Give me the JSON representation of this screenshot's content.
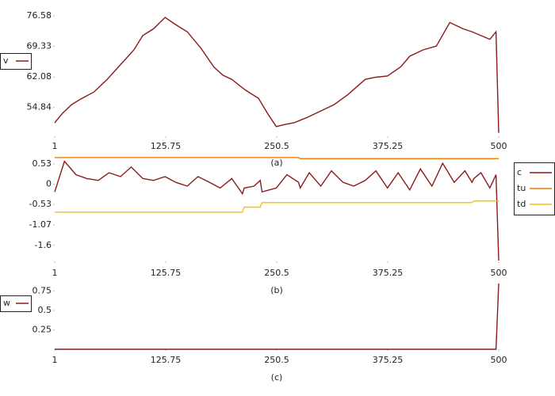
{
  "chart_data": [
    {
      "type": "line",
      "caption": "(a)",
      "x": [
        1,
        10,
        20,
        30,
        45,
        60,
        75,
        90,
        100,
        112,
        125,
        137,
        150,
        165,
        180,
        190,
        200,
        215,
        230,
        240,
        250,
        260,
        270,
        285,
        300,
        315,
        330,
        350,
        362,
        375,
        390,
        400,
        415,
        430,
        445,
        460,
        470,
        480,
        490,
        497,
        500
      ],
      "series": [
        {
          "name": "v",
          "color": "#8b1a1a",
          "values": [
            51.2,
            53.5,
            55.5,
            56.8,
            58.5,
            61.5,
            65,
            68.5,
            71.9,
            73.5,
            76.2,
            74.5,
            72.8,
            69,
            64.4,
            62.5,
            61.5,
            59,
            57,
            53.5,
            50.3,
            50.8,
            51.2,
            52.5,
            54,
            55.5,
            57.8,
            61.5,
            62,
            62.3,
            64.5,
            67,
            68.5,
            69.4,
            75,
            73.5,
            72.8,
            71.9,
            71,
            72.8,
            48.8
          ]
        }
      ],
      "xlim": [
        1,
        500
      ],
      "ylim": [
        48,
        76.58
      ],
      "xticks": [
        1,
        125.75,
        250.5,
        375.25,
        500
      ],
      "yticks": [
        54.84,
        62.08,
        69.33,
        76.58
      ],
      "legend": "left"
    },
    {
      "type": "line",
      "caption": "(b)",
      "x": [
        1,
        12,
        25,
        37,
        50,
        62,
        75,
        87,
        100,
        112,
        125,
        137,
        150,
        162,
        175,
        187,
        200,
        212,
        214,
        225,
        232,
        234,
        250,
        262,
        275,
        277,
        287,
        300,
        312,
        325,
        337,
        350,
        362,
        375,
        387,
        400,
        412,
        425,
        437,
        450,
        462,
        470,
        472,
        480,
        490,
        497,
        500
      ],
      "series": [
        {
          "name": "c",
          "color": "#8b1a1a",
          "values": [
            -0.2,
            0.6,
            0.25,
            0.15,
            0.1,
            0.3,
            0.2,
            0.45,
            0.15,
            0.1,
            0.2,
            0.05,
            -0.05,
            0.2,
            0.05,
            -0.1,
            0.15,
            -0.25,
            -0.1,
            -0.05,
            0.1,
            -0.2,
            -0.1,
            0.25,
            0.05,
            -0.1,
            0.3,
            -0.05,
            0.35,
            0.05,
            -0.05,
            0.1,
            0.35,
            -0.1,
            0.3,
            -0.15,
            0.4,
            -0.05,
            0.55,
            0.05,
            0.35,
            0.05,
            0.15,
            0.3,
            -0.1,
            0.25,
            -2.0
          ]
        },
        {
          "name": "tu",
          "color": "#f07800",
          "values": [
            0.7,
            0.7,
            0.7,
            0.7,
            0.7,
            0.7,
            0.7,
            0.7,
            0.7,
            0.7,
            0.7,
            0.7,
            0.7,
            0.7,
            0.7,
            0.7,
            0.7,
            0.7,
            0.7,
            0.7,
            0.7,
            0.7,
            0.7,
            0.7,
            0.7,
            0.67,
            0.67,
            0.67,
            0.67,
            0.67,
            0.67,
            0.67,
            0.67,
            0.67,
            0.67,
            0.67,
            0.67,
            0.67,
            0.67,
            0.67,
            0.67,
            0.67,
            0.67,
            0.67,
            0.67,
            0.67,
            0.67
          ]
        },
        {
          "name": "td",
          "color": "#f5c400",
          "values": [
            -0.73,
            -0.73,
            -0.73,
            -0.73,
            -0.73,
            -0.73,
            -0.73,
            -0.73,
            -0.73,
            -0.73,
            -0.73,
            -0.73,
            -0.73,
            -0.73,
            -0.73,
            -0.73,
            -0.73,
            -0.73,
            -0.6,
            -0.6,
            -0.6,
            -0.48,
            -0.48,
            -0.48,
            -0.48,
            -0.48,
            -0.48,
            -0.48,
            -0.48,
            -0.48,
            -0.48,
            -0.48,
            -0.48,
            -0.48,
            -0.48,
            -0.48,
            -0.48,
            -0.48,
            -0.48,
            -0.48,
            -0.48,
            -0.48,
            -0.44,
            -0.44,
            -0.44,
            -0.44,
            -0.44
          ]
        }
      ],
      "xlim": [
        1,
        500
      ],
      "ylim": [
        -2.02,
        0.78
      ],
      "xticks": [
        1,
        125.75,
        250.5,
        375.25,
        500
      ],
      "yticks": [
        0.53,
        0,
        -0.53,
        -1.07,
        -1.6
      ],
      "legend": "right"
    },
    {
      "type": "line",
      "caption": "(c)",
      "x": [
        1,
        100,
        200,
        300,
        400,
        497,
        500
      ],
      "series": [
        {
          "name": "w",
          "color": "#8b1a1a",
          "values": [
            0,
            0,
            0,
            0,
            0,
            0,
            0.85
          ]
        }
      ],
      "xlim": [
        1,
        500
      ],
      "ylim": [
        0,
        0.88
      ],
      "xticks": [
        1,
        125.75,
        250.5,
        375.25,
        500
      ],
      "yticks": [
        0.25,
        0.5,
        0.75
      ],
      "legend": "left"
    }
  ]
}
